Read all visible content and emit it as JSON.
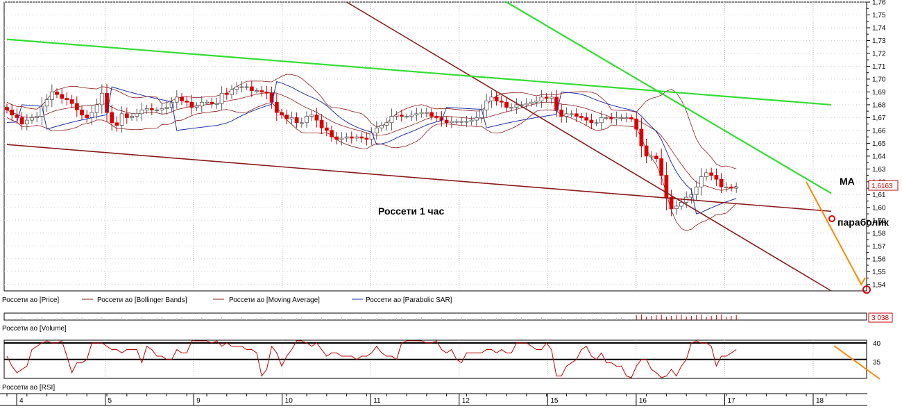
{
  "chart_data": {
    "type": "candlestick",
    "title": "Россети   1 час",
    "price_axis": {
      "ylim": [
        1.535,
        1.76
      ],
      "ticks": [
        "1,76",
        "1,75",
        "1,74",
        "1,73",
        "1,72",
        "1,71",
        "1,70",
        "1,69",
        "1,68",
        "1,67",
        "1,66",
        "1,65",
        "1,64",
        "1,63",
        "1,62",
        "1,61",
        "1,60",
        "1,59",
        "1,58",
        "1,57",
        "1,56",
        "1,55",
        "1,54"
      ],
      "tick_values": [
        1.76,
        1.75,
        1.74,
        1.73,
        1.72,
        1.71,
        1.7,
        1.69,
        1.68,
        1.67,
        1.66,
        1.65,
        1.64,
        1.63,
        1.62,
        1.61,
        1.6,
        1.59,
        1.58,
        1.57,
        1.56,
        1.55,
        1.54
      ],
      "last_price_label": "1,6163",
      "last_price": 1.6163
    },
    "x_axis": {
      "ticks": [
        "4",
        "5",
        "9",
        "10",
        "11",
        "12",
        "15",
        "16",
        "17",
        "18"
      ],
      "bars_per_day": 17
    },
    "legend": [
      {
        "label": "Россети ао [Price]",
        "color": "#000000"
      },
      {
        "label": "Россети ао [Bollinger Bands]",
        "color": "#8b1a1a"
      },
      {
        "label": "Россети ао [Moving Average]",
        "color": "#8b1a1a"
      },
      {
        "label": "Россети ао [Parabolic SAR]",
        "color": "#1f2fa8"
      }
    ],
    "volume_panel": {
      "label": "Россети ао [Volume]",
      "last_value_label": "3 038"
    },
    "rsi_panel": {
      "label": "Россети ао [RSI]",
      "ticks": [
        "40",
        "35"
      ],
      "tick_values": [
        40,
        35
      ]
    },
    "annotations": [
      "МА",
      "параболик"
    ],
    "trendlines": [
      {
        "color": "#8b1a1a",
        "points": [
          [
            0,
            1.649
          ],
          [
            165,
            1.597
          ]
        ]
      },
      {
        "color": "#8b1a1a",
        "points": [
          [
            68,
            1.76
          ],
          [
            165,
            1.535
          ]
        ]
      },
      {
        "color": "#33dd33",
        "points": [
          [
            0,
            1.731
          ],
          [
            165,
            1.68
          ]
        ]
      },
      {
        "color": "#33dd33",
        "points": [
          [
            100,
            1.76
          ],
          [
            165,
            1.611
          ]
        ]
      },
      {
        "color": "#ff8800",
        "points": [
          [
            160,
            1.62
          ],
          [
            171,
            1.54
          ]
        ]
      }
    ],
    "close_series": [
      1.676,
      1.672,
      1.67,
      1.665,
      1.668,
      1.67,
      1.671,
      1.679,
      1.684,
      1.69,
      1.688,
      1.685,
      1.684,
      1.681,
      1.676,
      1.672,
      1.67,
      1.674,
      1.68,
      1.689,
      1.674,
      1.666,
      1.664,
      1.673,
      1.67,
      1.671,
      1.673,
      1.676,
      1.677,
      1.676,
      1.676,
      1.677,
      1.678,
      1.682,
      1.686,
      1.683,
      1.682,
      1.678,
      1.679,
      1.682,
      1.682,
      1.681,
      1.681,
      1.689,
      1.688,
      1.692,
      1.694,
      1.694,
      1.694,
      1.691,
      1.691,
      1.69,
      1.689,
      1.682,
      1.674,
      1.672,
      1.669,
      1.67,
      1.666,
      1.666,
      1.671,
      1.672,
      1.668,
      1.662,
      1.66,
      1.655,
      1.653,
      1.654,
      1.655,
      1.654,
      1.655,
      1.654,
      1.653,
      1.658,
      1.662,
      1.664,
      1.666,
      1.671,
      1.672,
      1.671,
      1.671,
      1.672,
      1.673,
      1.674,
      1.674,
      1.671,
      1.67,
      1.668,
      1.666,
      1.667,
      1.667,
      1.667,
      1.667,
      1.668,
      1.67,
      1.676,
      1.683,
      1.686,
      1.683,
      1.682,
      1.678,
      1.678,
      1.68,
      1.68,
      1.681,
      1.682,
      1.683,
      1.686,
      1.685,
      1.686,
      1.676,
      1.671,
      1.673,
      1.673,
      1.671,
      1.67,
      1.668,
      1.666,
      1.666,
      1.67,
      1.67,
      1.669,
      1.67,
      1.67,
      1.67,
      1.669,
      1.661,
      1.648,
      1.64,
      1.64,
      1.638,
      1.625,
      1.608,
      1.599,
      1.601,
      1.604,
      1.608,
      1.61,
      1.616,
      1.624,
      1.627,
      1.625,
      1.622,
      1.616,
      1.616,
      1.615,
      1.616
    ],
    "rsi_series": [
      36,
      33,
      31,
      32,
      33,
      38,
      39,
      40,
      41,
      40,
      40,
      42,
      36,
      31,
      34,
      34,
      35,
      40,
      40,
      40,
      39,
      38,
      38,
      37,
      38,
      38,
      38,
      34,
      39,
      38,
      36,
      36,
      35,
      35,
      38,
      37,
      37,
      42,
      42,
      42,
      41,
      40,
      43,
      39,
      40,
      39,
      39,
      39,
      38,
      38,
      37,
      30,
      32,
      39,
      37,
      33,
      36,
      38,
      41,
      42,
      40,
      39,
      40,
      38,
      36,
      37,
      37,
      36,
      36,
      36,
      35,
      36,
      36,
      37,
      39,
      37,
      36,
      36,
      35,
      40,
      42,
      41,
      42,
      42,
      40,
      40,
      41,
      38,
      37,
      38,
      35,
      34,
      37,
      37,
      37,
      37,
      38,
      38,
      37,
      38,
      37,
      37,
      40,
      40,
      40,
      39,
      38,
      38,
      40,
      38,
      30,
      30,
      33,
      34,
      35,
      38,
      39,
      36,
      35,
      37,
      34,
      34,
      33,
      33,
      30,
      29,
      33,
      35,
      35,
      32,
      31,
      29,
      30,
      32,
      30,
      33,
      35,
      40,
      41,
      40,
      40,
      39,
      33,
      36,
      36,
      37,
      38
    ]
  }
}
